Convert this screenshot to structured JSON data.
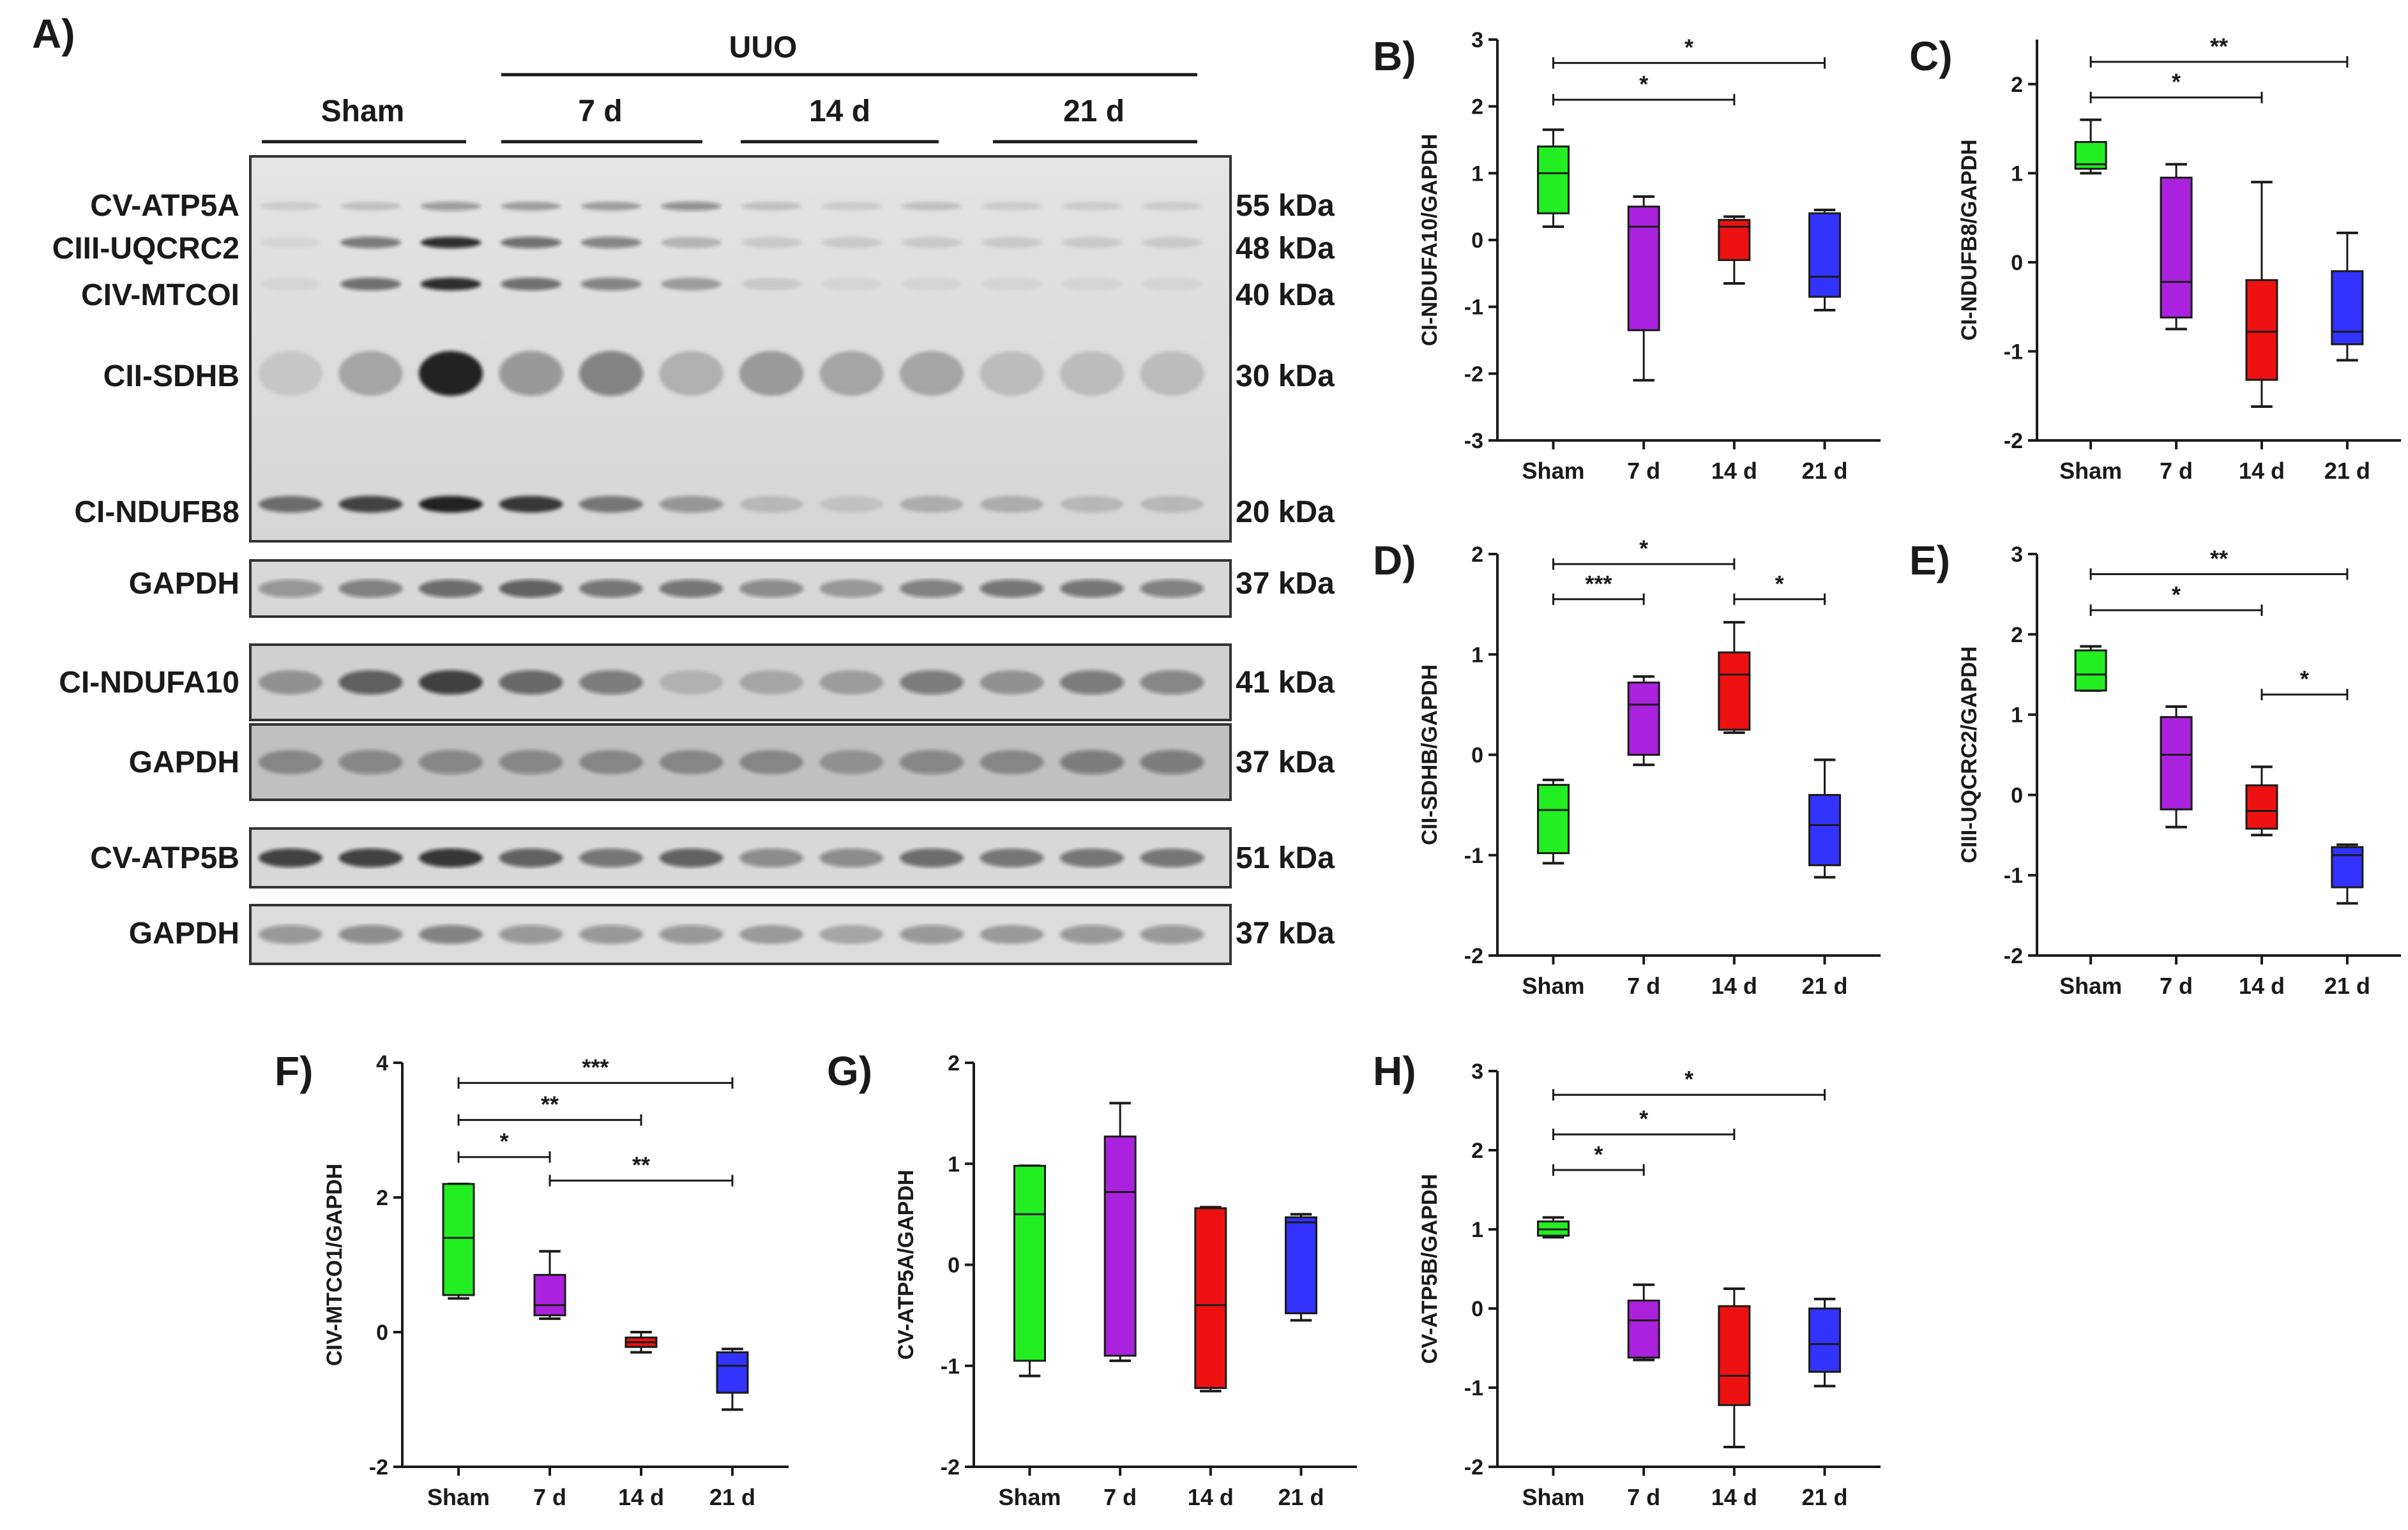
{
  "panel_a": {
    "letter": "A)",
    "uuo_label": "UUO",
    "groups": [
      "Sham",
      "7 d",
      "14 d",
      "21 d"
    ],
    "blots": [
      {
        "bands": [
          {
            "name": "CV-ATP5A",
            "kda": "55 kDa"
          },
          {
            "name": "CIII-UQCRC2",
            "kda": "48 kDa"
          },
          {
            "name": "CIV-MTCOI",
            "kda": "40 kDa"
          },
          {
            "name": "CII-SDHB",
            "kda": "30 kDa"
          },
          {
            "name": "CI-NDUFB8",
            "kda": "20 kDa"
          }
        ]
      },
      {
        "bands": [
          {
            "name": "GAPDH",
            "kda": "37 kDa"
          }
        ]
      },
      {
        "bands": [
          {
            "name": "CI-NDUFA10",
            "kda": "41 kDa"
          }
        ]
      },
      {
        "bands": [
          {
            "name": "GAPDH",
            "kda": "37 kDa"
          }
        ]
      },
      {
        "bands": [
          {
            "name": "CV-ATP5B",
            "kda": "51 kDa"
          }
        ]
      },
      {
        "bands": [
          {
            "name": "GAPDH",
            "kda": "37 kDa"
          }
        ]
      }
    ]
  },
  "colors": {
    "sham": "#22ee22",
    "d7": "#aa22dd",
    "d14": "#ee1111",
    "d21": "#3333ff"
  },
  "chart_data": [
    {
      "panel": "B)",
      "type": "box",
      "ylabel": "CI-NDUFA10/GAPDH",
      "ylim": [
        -3,
        3
      ],
      "ticks": [
        3,
        2,
        1,
        0,
        -1,
        -2,
        -3
      ],
      "categories": [
        "Sham",
        "7 d",
        "14 d",
        "21 d"
      ],
      "boxes": [
        {
          "min": 0.2,
          "q1": 0.4,
          "median": 1.0,
          "q3": 1.4,
          "max": 1.65
        },
        {
          "min": -2.1,
          "q1": -1.35,
          "median": 0.2,
          "q3": 0.5,
          "max": 0.65
        },
        {
          "min": -0.65,
          "q1": -0.3,
          "median": 0.2,
          "q3": 0.3,
          "max": 0.35
        },
        {
          "min": -1.05,
          "q1": -0.85,
          "median": -0.55,
          "q3": 0.4,
          "max": 0.45
        }
      ],
      "significance": [
        {
          "from": 0,
          "to": 2,
          "y": 2.1,
          "label": "*"
        },
        {
          "from": 0,
          "to": 3,
          "y": 2.65,
          "label": "*"
        }
      ]
    },
    {
      "panel": "C)",
      "type": "box",
      "ylabel": "CI-NDUFB8/GAPDH",
      "ylim": [
        -2,
        2.5
      ],
      "ticks": [
        2,
        1,
        0,
        -1,
        -2
      ],
      "categories": [
        "Sham",
        "7 d",
        "14 d",
        "21 d"
      ],
      "boxes": [
        {
          "min": 1.0,
          "q1": 1.05,
          "median": 1.1,
          "q3": 1.35,
          "max": 1.6
        },
        {
          "min": -0.75,
          "q1": -0.62,
          "median": -0.22,
          "q3": 0.95,
          "max": 1.1
        },
        {
          "min": -1.62,
          "q1": -1.32,
          "median": -0.78,
          "q3": -0.2,
          "max": 0.9
        },
        {
          "min": -1.1,
          "q1": -0.92,
          "median": -0.78,
          "q3": -0.1,
          "max": 0.33
        }
      ],
      "significance": [
        {
          "from": 0,
          "to": 2,
          "y": 1.85,
          "label": "*"
        },
        {
          "from": 0,
          "to": 3,
          "y": 2.25,
          "label": "**"
        }
      ]
    },
    {
      "panel": "D)",
      "type": "box",
      "ylabel": "CII-SDHB/GAPDH",
      "ylim": [
        -2,
        2
      ],
      "ticks": [
        2,
        1,
        0,
        -1,
        -2
      ],
      "categories": [
        "Sham",
        "7 d",
        "14 d",
        "21 d"
      ],
      "boxes": [
        {
          "min": -1.08,
          "q1": -0.98,
          "median": -0.55,
          "q3": -0.3,
          "max": -0.25
        },
        {
          "min": -0.1,
          "q1": 0.0,
          "median": 0.5,
          "q3": 0.72,
          "max": 0.78
        },
        {
          "min": 0.22,
          "q1": 0.25,
          "median": 0.8,
          "q3": 1.02,
          "max": 1.32
        },
        {
          "min": -1.22,
          "q1": -1.1,
          "median": -0.7,
          "q3": -0.4,
          "max": -0.05
        }
      ],
      "significance": [
        {
          "from": 0,
          "to": 1,
          "y": 1.55,
          "label": "***"
        },
        {
          "from": 0,
          "to": 2,
          "y": 1.9,
          "label": "*"
        },
        {
          "from": 2,
          "to": 3,
          "y": 1.55,
          "label": "*"
        }
      ]
    },
    {
      "panel": "E)",
      "type": "box",
      "ylabel": "CIII-UQCRC2/GAPDH",
      "ylim": [
        -2,
        3
      ],
      "ticks": [
        3,
        2,
        1,
        0,
        -1,
        -2
      ],
      "categories": [
        "Sham",
        "7 d",
        "14 d",
        "21 d"
      ],
      "boxes": [
        {
          "min": 1.3,
          "q1": 1.3,
          "median": 1.5,
          "q3": 1.8,
          "max": 1.85
        },
        {
          "min": -0.4,
          "q1": -0.18,
          "median": 0.5,
          "q3": 0.97,
          "max": 1.1
        },
        {
          "min": -0.5,
          "q1": -0.42,
          "median": -0.2,
          "q3": 0.12,
          "max": 0.35
        },
        {
          "min": -1.35,
          "q1": -1.15,
          "median": -0.75,
          "q3": -0.65,
          "max": -0.62
        }
      ],
      "significance": [
        {
          "from": 0,
          "to": 2,
          "y": 2.3,
          "label": "*"
        },
        {
          "from": 0,
          "to": 3,
          "y": 2.75,
          "label": "**"
        },
        {
          "from": 2,
          "to": 3,
          "y": 1.25,
          "label": "*"
        }
      ]
    },
    {
      "panel": "F)",
      "type": "box",
      "ylabel": "CIV-MTCO1/GAPDH",
      "ylim": [
        -2,
        4
      ],
      "ticks": [
        4,
        2,
        0,
        -2
      ],
      "categories": [
        "Sham",
        "7 d",
        "14 d",
        "21 d"
      ],
      "boxes": [
        {
          "min": 0.5,
          "q1": 0.55,
          "median": 1.4,
          "q3": 2.2,
          "max": 2.2
        },
        {
          "min": 0.2,
          "q1": 0.25,
          "median": 0.4,
          "q3": 0.85,
          "max": 1.2
        },
        {
          "min": -0.3,
          "q1": -0.22,
          "median": -0.15,
          "q3": -0.08,
          "max": 0.0
        },
        {
          "min": -1.15,
          "q1": -0.9,
          "median": -0.5,
          "q3": -0.3,
          "max": -0.25
        }
      ],
      "significance": [
        {
          "from": 0,
          "to": 1,
          "y": 2.6,
          "label": "*"
        },
        {
          "from": 0,
          "to": 2,
          "y": 3.15,
          "label": "**"
        },
        {
          "from": 0,
          "to": 3,
          "y": 3.7,
          "label": "***"
        },
        {
          "from": 1,
          "to": 3,
          "y": 2.25,
          "label": "**"
        }
      ]
    },
    {
      "panel": "G)",
      "type": "box",
      "ylabel": "CV-ATP5A/GAPDH",
      "ylim": [
        -2,
        2
      ],
      "ticks": [
        2,
        1,
        0,
        -1,
        -2
      ],
      "categories": [
        "Sham",
        "7 d",
        "14 d",
        "21 d"
      ],
      "boxes": [
        {
          "min": -1.1,
          "q1": -0.95,
          "median": 0.5,
          "q3": 0.98,
          "max": 0.98
        },
        {
          "min": -0.95,
          "q1": -0.9,
          "median": 0.72,
          "q3": 1.27,
          "max": 1.6
        },
        {
          "min": -1.25,
          "q1": -1.22,
          "median": -0.4,
          "q3": 0.56,
          "max": 0.57
        },
        {
          "min": -0.55,
          "q1": -0.48,
          "median": 0.42,
          "q3": 0.47,
          "max": 0.5
        }
      ],
      "significance": []
    },
    {
      "panel": "H)",
      "type": "box",
      "ylabel": "CV-ATP5B/GAPDH",
      "ylim": [
        -2,
        3
      ],
      "ticks": [
        3,
        2,
        1,
        0,
        -1,
        -2
      ],
      "categories": [
        "Sham",
        "7 d",
        "14 d",
        "21 d"
      ],
      "boxes": [
        {
          "min": 0.9,
          "q1": 0.92,
          "median": 1.0,
          "q3": 1.1,
          "max": 1.15
        },
        {
          "min": -0.65,
          "q1": -0.62,
          "median": -0.15,
          "q3": 0.1,
          "max": 0.3
        },
        {
          "min": -1.75,
          "q1": -1.22,
          "median": -0.85,
          "q3": 0.03,
          "max": 0.25
        },
        {
          "min": -0.98,
          "q1": -0.8,
          "median": -0.45,
          "q3": 0.0,
          "max": 0.12
        }
      ],
      "significance": [
        {
          "from": 0,
          "to": 1,
          "y": 1.75,
          "label": "*"
        },
        {
          "from": 0,
          "to": 2,
          "y": 2.2,
          "label": "*"
        },
        {
          "from": 0,
          "to": 3,
          "y": 2.7,
          "label": "*"
        }
      ]
    }
  ]
}
